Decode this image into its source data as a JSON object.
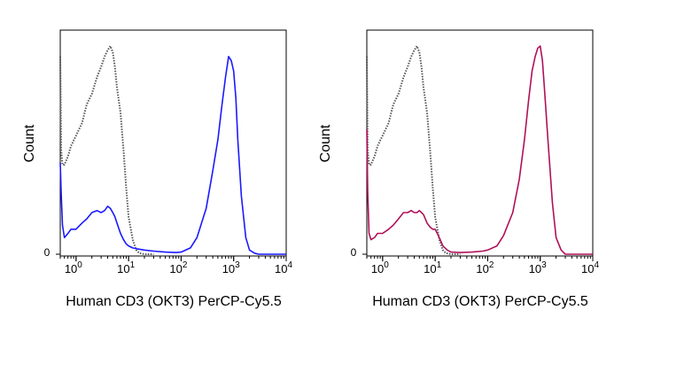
{
  "chart_data": [
    {
      "type": "line",
      "x_scale": "log",
      "xlim": [
        0.5,
        10000
      ],
      "ylim": [
        0,
        1
      ],
      "xlabel": "Human CD3 (OKT3) PerCP-Cy5.5",
      "ylabel": "Count",
      "y_tick_label": "0",
      "x_ticks": [
        {
          "value": 1,
          "base": "10",
          "exp": "0"
        },
        {
          "value": 10,
          "base": "10",
          "exp": "1"
        },
        {
          "value": 100,
          "base": "10",
          "exp": "2"
        },
        {
          "value": 1000,
          "base": "10",
          "exp": "3"
        },
        {
          "value": 10000,
          "base": "10",
          "exp": "4"
        }
      ],
      "series": [
        {
          "style": "dotted",
          "color": "#555555",
          "x": [
            0.5,
            0.52,
            0.55,
            0.6,
            0.7,
            0.8,
            1.0,
            1.3,
            1.6,
            2.0,
            2.5,
            3.0,
            3.5,
            4.0,
            4.5,
            5.0,
            5.5,
            6.0,
            7.0,
            8.0,
            9.0,
            10.0,
            12.0,
            14.0,
            16.0,
            20.0,
            30.0
          ],
          "y": [
            0.95,
            0.5,
            0.43,
            0.43,
            0.47,
            0.52,
            0.57,
            0.63,
            0.72,
            0.77,
            0.85,
            0.9,
            0.95,
            0.98,
            1.0,
            0.97,
            0.9,
            0.8,
            0.68,
            0.5,
            0.32,
            0.18,
            0.07,
            0.02,
            0.005,
            0.0,
            0.0
          ]
        },
        {
          "style": "solid",
          "color": "#1a1aff",
          "x": [
            0.5,
            0.52,
            0.55,
            0.6,
            0.7,
            0.8,
            1.0,
            1.3,
            1.6,
            2.0,
            2.5,
            3.0,
            3.5,
            4.0,
            4.5,
            5.0,
            5.5,
            6.0,
            7.0,
            8.0,
            9.0,
            10.0,
            12.0,
            15.0,
            20.0,
            30.0,
            50.0,
            80.0,
            100.0,
            150.0,
            200.0,
            300.0,
            400.0,
            500.0,
            600.0,
            700.0,
            800.0,
            900.0,
            1000.0,
            1100.0,
            1200.0,
            1400.0,
            1700.0,
            2000.0,
            2500.0,
            3000.0,
            5000.0,
            10000.0
          ],
          "y": [
            0.44,
            0.3,
            0.14,
            0.08,
            0.1,
            0.12,
            0.12,
            0.15,
            0.17,
            0.2,
            0.21,
            0.2,
            0.21,
            0.23,
            0.22,
            0.2,
            0.18,
            0.15,
            0.1,
            0.07,
            0.05,
            0.04,
            0.03,
            0.025,
            0.02,
            0.015,
            0.01,
            0.008,
            0.01,
            0.03,
            0.08,
            0.22,
            0.4,
            0.55,
            0.72,
            0.85,
            0.95,
            0.93,
            0.88,
            0.75,
            0.55,
            0.28,
            0.08,
            0.02,
            0.005,
            0.0,
            0.0,
            0.0
          ]
        }
      ]
    },
    {
      "type": "line",
      "x_scale": "log",
      "xlim": [
        0.5,
        10000
      ],
      "ylim": [
        0,
        1
      ],
      "xlabel": "Human CD3 (OKT3) PerCP-Cy5.5",
      "ylabel": "Count",
      "y_tick_label": "0",
      "x_ticks": [
        {
          "value": 1,
          "base": "10",
          "exp": "0"
        },
        {
          "value": 10,
          "base": "10",
          "exp": "1"
        },
        {
          "value": 100,
          "base": "10",
          "exp": "2"
        },
        {
          "value": 1000,
          "base": "10",
          "exp": "3"
        },
        {
          "value": 10000,
          "base": "10",
          "exp": "4"
        }
      ],
      "series": [
        {
          "style": "dotted",
          "color": "#555555",
          "x": [
            0.5,
            0.52,
            0.55,
            0.6,
            0.7,
            0.8,
            1.0,
            1.3,
            1.6,
            2.0,
            2.5,
            3.0,
            3.5,
            4.0,
            4.5,
            5.0,
            5.5,
            6.0,
            7.0,
            8.0,
            9.0,
            10.0,
            12.0,
            14.0,
            16.0,
            20.0,
            30.0
          ],
          "y": [
            0.95,
            0.5,
            0.43,
            0.43,
            0.47,
            0.52,
            0.57,
            0.63,
            0.72,
            0.77,
            0.85,
            0.9,
            0.95,
            0.98,
            1.0,
            0.97,
            0.9,
            0.8,
            0.68,
            0.5,
            0.32,
            0.18,
            0.07,
            0.02,
            0.005,
            0.0,
            0.0
          ]
        },
        {
          "style": "solid",
          "color": "#b0105a",
          "x": [
            0.5,
            0.52,
            0.55,
            0.6,
            0.7,
            0.8,
            1.0,
            1.3,
            1.6,
            2.0,
            2.5,
            3.0,
            3.5,
            4.0,
            4.5,
            5.0,
            5.5,
            6.0,
            7.0,
            8.0,
            9.0,
            10.0,
            12.0,
            14.0,
            17.0,
            20.0,
            30.0,
            50.0,
            80.0,
            100.0,
            150.0,
            200.0,
            300.0,
            400.0,
            500.0,
            600.0,
            700.0,
            800.0,
            900.0,
            1000.0,
            1100.0,
            1200.0,
            1400.0,
            1700.0,
            2000.0,
            2500.0,
            3000.0,
            5000.0,
            10000.0
          ],
          "y": [
            0.6,
            0.3,
            0.1,
            0.07,
            0.08,
            0.1,
            0.1,
            0.12,
            0.14,
            0.17,
            0.2,
            0.2,
            0.21,
            0.2,
            0.2,
            0.21,
            0.2,
            0.19,
            0.15,
            0.13,
            0.12,
            0.12,
            0.08,
            0.04,
            0.02,
            0.01,
            0.008,
            0.01,
            0.015,
            0.02,
            0.04,
            0.09,
            0.2,
            0.36,
            0.55,
            0.74,
            0.88,
            0.95,
            0.99,
            1.0,
            0.93,
            0.8,
            0.55,
            0.25,
            0.08,
            0.02,
            0.0,
            0.0,
            0.0
          ]
        }
      ]
    }
  ]
}
